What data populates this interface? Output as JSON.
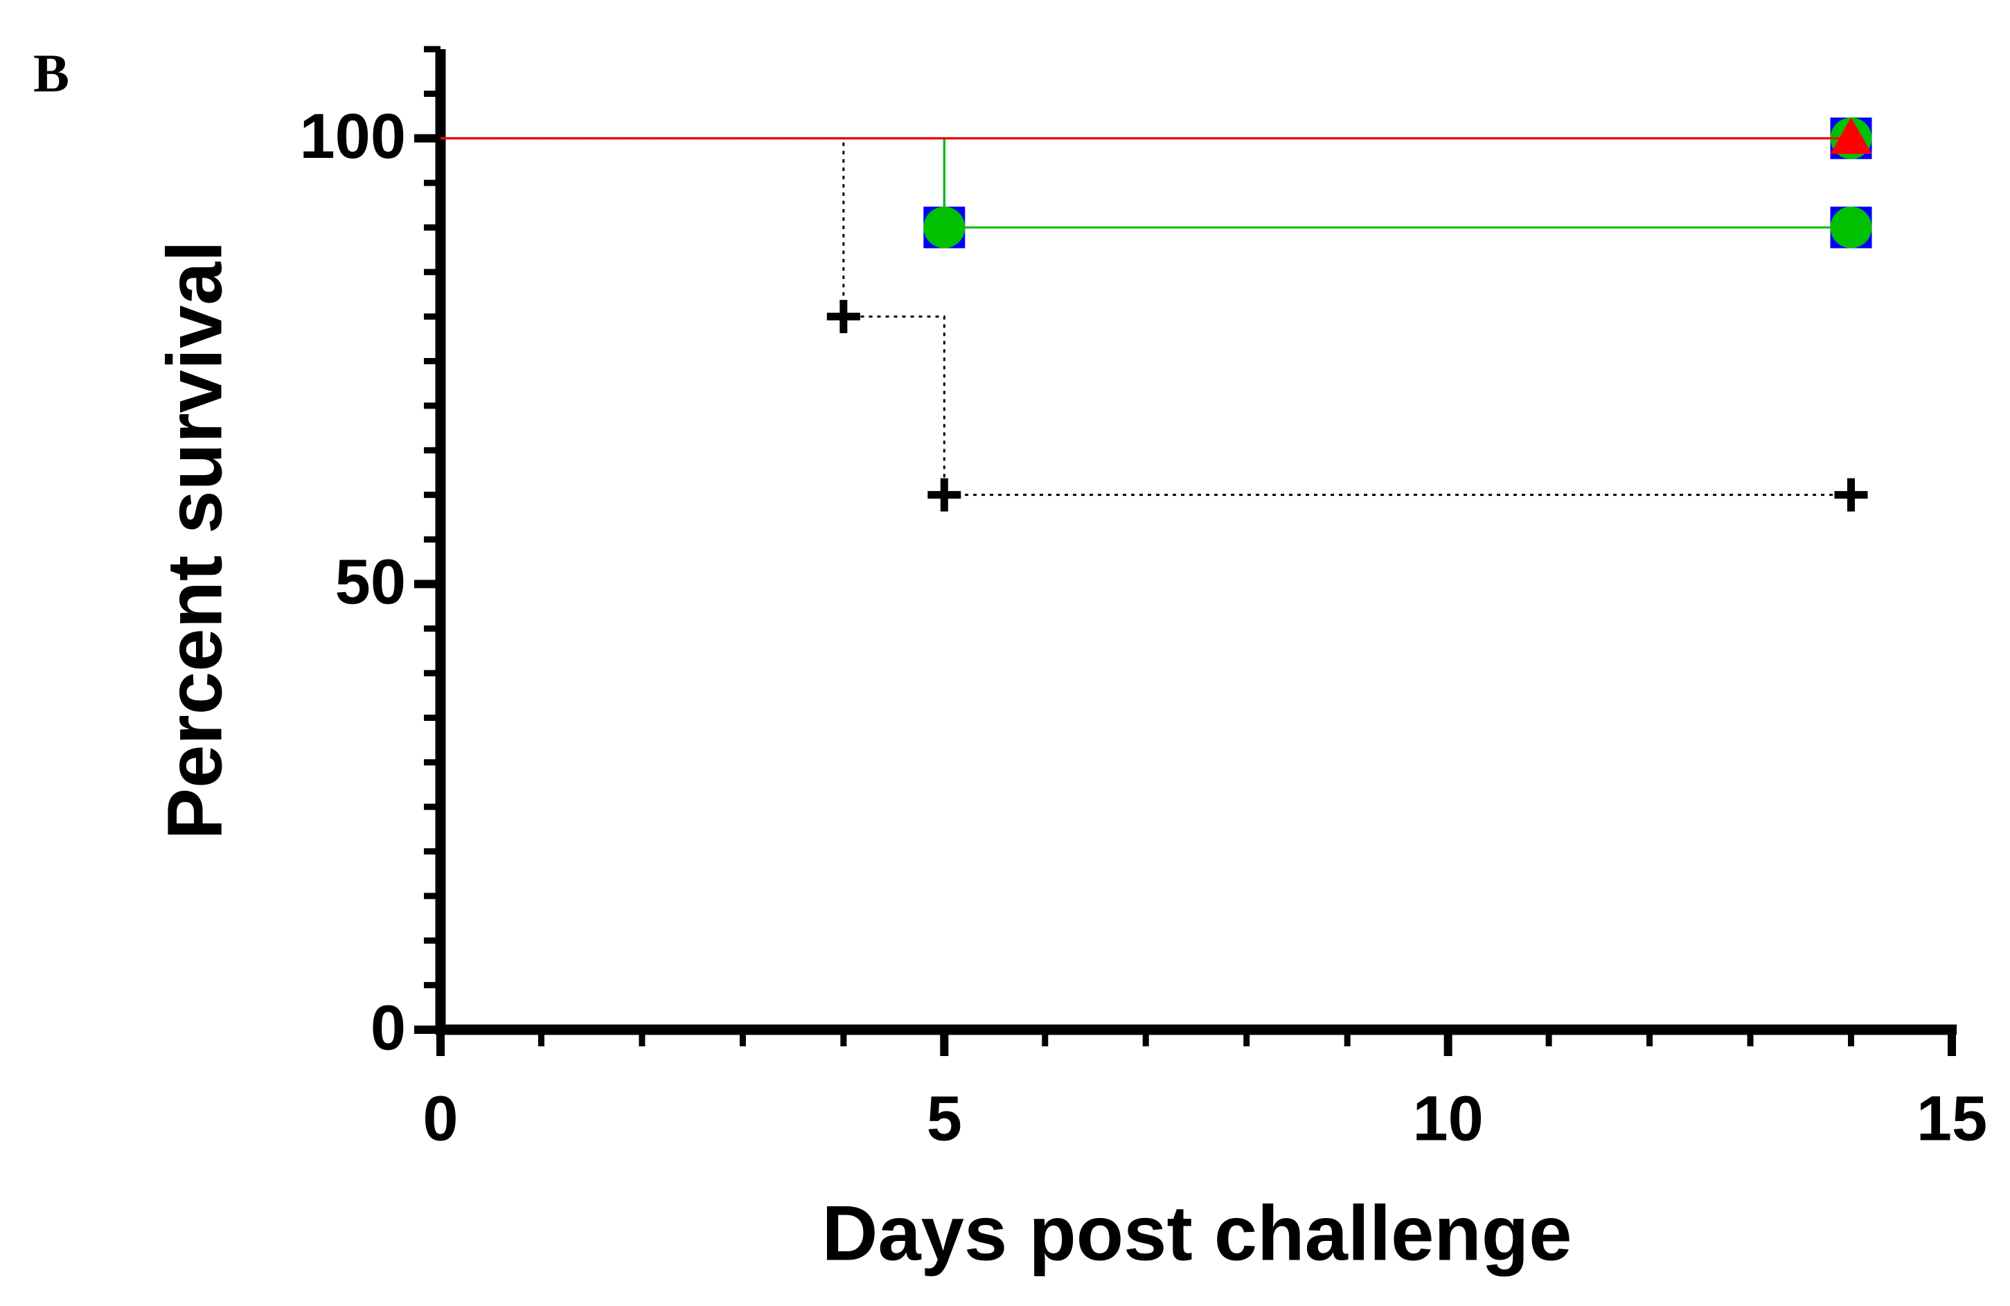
{
  "panel_label": "B",
  "chart_data": {
    "type": "step",
    "xlabel": "Days post challenge",
    "ylabel": "Percent survival",
    "xlim": [
      0,
      15
    ],
    "ylim": [
      0,
      110
    ],
    "xticks": [
      0,
      5,
      10,
      15
    ],
    "yticks": [
      0,
      50,
      100
    ],
    "minor_xticks": [
      1,
      2,
      3,
      4,
      6,
      7,
      8,
      9,
      11,
      12,
      13,
      14
    ],
    "minor_yticks": [
      5,
      10,
      15,
      20,
      25,
      30,
      35,
      40,
      45,
      55,
      60,
      65,
      70,
      75,
      80,
      85,
      90,
      95,
      105,
      110
    ],
    "series": [
      {
        "color": "#000000",
        "marker": "plus",
        "dash": true,
        "x": [
          0,
          4,
          5,
          14
        ],
        "values": [
          100,
          80,
          60,
          60
        ]
      },
      {
        "color": "#0000ff",
        "marker": "square",
        "x": [
          0,
          5,
          14
        ],
        "values": [
          100,
          90,
          90
        ]
      },
      {
        "color": "#00c000",
        "marker": "circle",
        "x": [
          0,
          5,
          14
        ],
        "values": [
          100,
          90,
          90
        ]
      },
      {
        "color": "#0000ff",
        "marker": "square",
        "x": [
          0,
          14
        ],
        "values": [
          100,
          100
        ]
      },
      {
        "color": "#00c000",
        "marker": "circle",
        "x": [
          0,
          14
        ],
        "values": [
          100,
          100
        ]
      },
      {
        "color": "#ff0000",
        "marker": "triangle",
        "x": [
          0,
          14
        ],
        "values": [
          100,
          100
        ]
      }
    ]
  }
}
